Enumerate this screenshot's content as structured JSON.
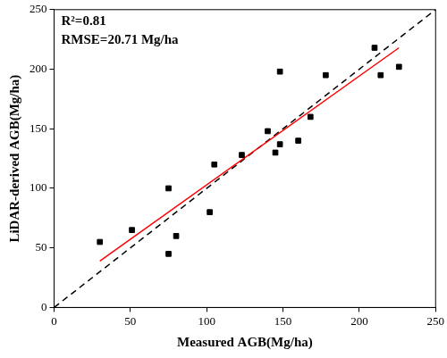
{
  "chart_data": {
    "type": "scatter",
    "x_label": "Measured AGB(Mg/ha)",
    "y_label": "LiDAR-derived AGB(Mg/ha)",
    "annotations": [
      "R²=0.81",
      "RMSE=20.71 Mg/ha"
    ],
    "series": [
      {
        "type": "scatter",
        "color": "#000000",
        "marker": "square",
        "x": [
          30,
          51,
          75,
          75,
          80,
          102,
          105,
          123,
          140,
          145,
          148,
          148,
          160,
          168,
          178,
          210,
          214,
          226
        ],
        "values": [
          55,
          65,
          100,
          45,
          60,
          80,
          120,
          128,
          148,
          130,
          137,
          198,
          140,
          160,
          195,
          218,
          195,
          202
        ]
      },
      {
        "type": "line",
        "color": "#ff0000",
        "line_style": "solid",
        "x": [
          30,
          226
        ],
        "values": [
          39,
          218
        ]
      },
      {
        "type": "line",
        "color": "#000000",
        "line_style": "dashed",
        "x": [
          0,
          250
        ],
        "values": [
          0,
          250
        ]
      }
    ],
    "xlim": [
      0,
      250
    ],
    "xticks": [
      0,
      50,
      100,
      150,
      200,
      250
    ],
    "ylim": [
      0,
      250
    ],
    "yticks": [
      0,
      50,
      100,
      150,
      200,
      250
    ],
    "grid": false
  }
}
